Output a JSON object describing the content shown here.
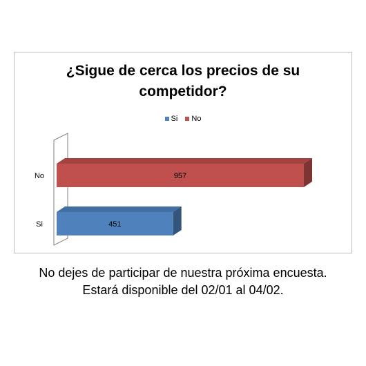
{
  "chart_data": {
    "type": "bar",
    "orientation": "horizontal",
    "title_lines": [
      "¿Sigue de cerca los precios de su",
      "competidor?"
    ],
    "categories": [
      "Si",
      "No"
    ],
    "series": [
      {
        "name": "Si",
        "category": "Si",
        "value": 451,
        "color": "#4f81bd"
      },
      {
        "name": "No",
        "category": "No",
        "value": 957,
        "color": "#c0504d"
      }
    ],
    "legend_position": "top",
    "grid": false,
    "three_d": true
  },
  "caption": {
    "line1": "No dejes de participar de nuestra próxima encuesta.",
    "line2": "Estará disponible del 02/01 al 04/02."
  }
}
